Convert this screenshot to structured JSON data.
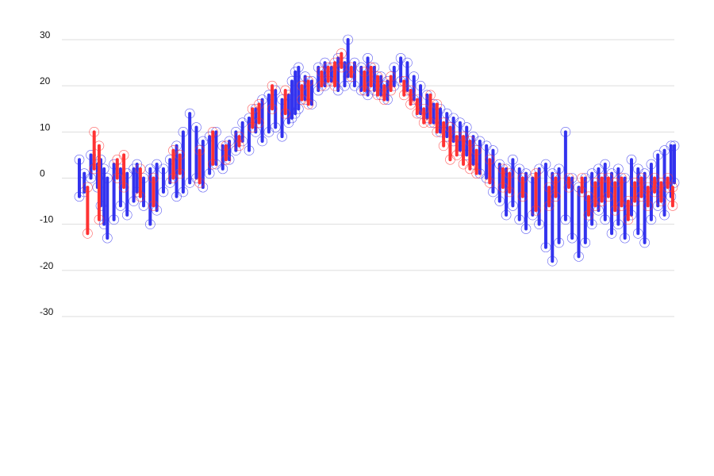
{
  "chart_data": {
    "type": "line",
    "title": "",
    "xlabel": "",
    "ylabel": "",
    "ylim": [
      -30,
      30
    ],
    "yticks": [
      30,
      20,
      10,
      0,
      -10,
      -20,
      -30
    ],
    "grid": true,
    "legend": "none",
    "colors": {
      "primary": "#3333ee",
      "secondary": "#ff3333",
      "grid": "#dddddd"
    },
    "series": [
      {
        "color": "#3333ee",
        "values": [
          [
            1,
            -4,
            4
          ],
          [
            4,
            -3,
            1
          ],
          [
            8,
            0,
            5
          ],
          [
            12,
            -2,
            3
          ],
          [
            14,
            -6,
            4
          ],
          [
            16,
            -10,
            2
          ],
          [
            18,
            -13,
            0
          ],
          [
            22,
            -9,
            3
          ],
          [
            26,
            -6,
            2
          ],
          [
            30,
            -8,
            1
          ],
          [
            34,
            -5,
            2
          ],
          [
            36,
            -3,
            3
          ],
          [
            40,
            -6,
            0
          ],
          [
            44,
            -10,
            2
          ],
          [
            48,
            -7,
            3
          ],
          [
            52,
            -3,
            2
          ],
          [
            56,
            -1,
            4
          ],
          [
            60,
            -4,
            7
          ],
          [
            64,
            -3,
            10
          ],
          [
            68,
            -1,
            14
          ],
          [
            72,
            0,
            11
          ],
          [
            76,
            -2,
            8
          ],
          [
            80,
            1,
            9
          ],
          [
            84,
            3,
            10
          ],
          [
            88,
            2,
            7
          ],
          [
            92,
            4,
            8
          ],
          [
            96,
            6,
            10
          ],
          [
            100,
            8,
            12
          ],
          [
            104,
            6,
            13
          ],
          [
            108,
            10,
            15
          ],
          [
            112,
            8,
            17
          ],
          [
            116,
            10,
            18
          ],
          [
            120,
            11,
            19
          ],
          [
            124,
            9,
            17
          ],
          [
            128,
            12,
            18
          ],
          [
            130,
            13,
            21
          ],
          [
            132,
            14,
            23
          ],
          [
            134,
            15,
            24
          ],
          [
            138,
            17,
            22
          ],
          [
            142,
            16,
            21
          ],
          [
            146,
            19,
            24
          ],
          [
            150,
            20,
            25
          ],
          [
            154,
            21,
            24
          ],
          [
            158,
            19,
            26
          ],
          [
            162,
            20,
            25
          ],
          [
            164,
            22,
            30
          ],
          [
            168,
            20,
            25
          ],
          [
            172,
            19,
            24
          ],
          [
            176,
            18,
            26
          ],
          [
            180,
            19,
            24
          ],
          [
            184,
            18,
            22
          ],
          [
            188,
            17,
            21
          ],
          [
            192,
            20,
            24
          ],
          [
            196,
            21,
            26
          ],
          [
            200,
            19,
            25
          ],
          [
            204,
            17,
            22
          ],
          [
            208,
            14,
            20
          ],
          [
            212,
            13,
            18
          ],
          [
            216,
            12,
            16
          ],
          [
            220,
            10,
            15
          ],
          [
            224,
            9,
            14
          ],
          [
            228,
            8,
            13
          ],
          [
            232,
            6,
            12
          ],
          [
            236,
            5,
            11
          ],
          [
            240,
            3,
            9
          ],
          [
            244,
            1,
            8
          ],
          [
            248,
            0,
            7
          ],
          [
            252,
            -3,
            6
          ],
          [
            256,
            -5,
            3
          ],
          [
            260,
            -8,
            2
          ],
          [
            264,
            -6,
            4
          ],
          [
            268,
            -9,
            2
          ],
          [
            272,
            -11,
            1
          ],
          [
            276,
            -8,
            0
          ],
          [
            280,
            -10,
            2
          ],
          [
            284,
            -15,
            3
          ],
          [
            288,
            -18,
            1
          ],
          [
            292,
            -14,
            2
          ],
          [
            296,
            -9,
            10
          ],
          [
            300,
            -13,
            0
          ],
          [
            304,
            -17,
            -2
          ],
          [
            308,
            -14,
            0
          ],
          [
            312,
            -10,
            1
          ],
          [
            316,
            -7,
            2
          ],
          [
            320,
            -9,
            3
          ],
          [
            324,
            -12,
            1
          ],
          [
            328,
            -10,
            2
          ],
          [
            332,
            -13,
            0
          ],
          [
            336,
            -8,
            4
          ],
          [
            340,
            -12,
            2
          ],
          [
            344,
            -14,
            1
          ],
          [
            348,
            -9,
            3
          ],
          [
            352,
            -6,
            5
          ],
          [
            356,
            -8,
            6
          ],
          [
            360,
            -4,
            7
          ],
          [
            362,
            -1,
            7
          ]
        ]
      },
      {
        "color": "#ff3333",
        "values": [
          [
            6,
            -12,
            -2
          ],
          [
            10,
            2,
            10
          ],
          [
            13,
            -9,
            7
          ],
          [
            24,
            0,
            4
          ],
          [
            28,
            -2,
            5
          ],
          [
            38,
            -4,
            2
          ],
          [
            46,
            -6,
            0
          ],
          [
            58,
            0,
            6
          ],
          [
            62,
            1,
            5
          ],
          [
            74,
            -1,
            6
          ],
          [
            82,
            3,
            10
          ],
          [
            90,
            4,
            7
          ],
          [
            98,
            7,
            9
          ],
          [
            106,
            11,
            15
          ],
          [
            110,
            12,
            16
          ],
          [
            118,
            15,
            20
          ],
          [
            126,
            14,
            19
          ],
          [
            136,
            17,
            20
          ],
          [
            140,
            16,
            21
          ],
          [
            148,
            20,
            23
          ],
          [
            152,
            21,
            24
          ],
          [
            156,
            20,
            25
          ],
          [
            160,
            24,
            27
          ],
          [
            166,
            22,
            24
          ],
          [
            174,
            19,
            23
          ],
          [
            178,
            20,
            24
          ],
          [
            182,
            18,
            22
          ],
          [
            186,
            17,
            20
          ],
          [
            190,
            19,
            22
          ],
          [
            198,
            18,
            21
          ],
          [
            202,
            16,
            19
          ],
          [
            206,
            14,
            17
          ],
          [
            210,
            12,
            15
          ],
          [
            214,
            12,
            18
          ],
          [
            218,
            10,
            16
          ],
          [
            222,
            7,
            12
          ],
          [
            226,
            4,
            11
          ],
          [
            230,
            5,
            9
          ],
          [
            234,
            3,
            9
          ],
          [
            238,
            2,
            8
          ],
          [
            242,
            1,
            6
          ],
          [
            250,
            -1,
            4
          ],
          [
            258,
            -2,
            2
          ],
          [
            262,
            -3,
            1
          ],
          [
            270,
            -4,
            0
          ],
          [
            278,
            -7,
            1
          ],
          [
            286,
            -6,
            -2
          ],
          [
            290,
            -4,
            0
          ],
          [
            298,
            -2,
            0
          ],
          [
            306,
            -3,
            0
          ],
          [
            310,
            -8,
            -4
          ],
          [
            314,
            -6,
            -1
          ],
          [
            318,
            -5,
            0
          ],
          [
            322,
            -4,
            0
          ],
          [
            326,
            -7,
            -1
          ],
          [
            330,
            -6,
            0
          ],
          [
            334,
            -9,
            -5
          ],
          [
            338,
            -5,
            -1
          ],
          [
            342,
            -4,
            0
          ],
          [
            346,
            -6,
            -2
          ],
          [
            350,
            -3,
            0
          ],
          [
            354,
            -5,
            -1
          ],
          [
            358,
            -2,
            0
          ],
          [
            361,
            -6,
            -2
          ]
        ]
      }
    ]
  }
}
